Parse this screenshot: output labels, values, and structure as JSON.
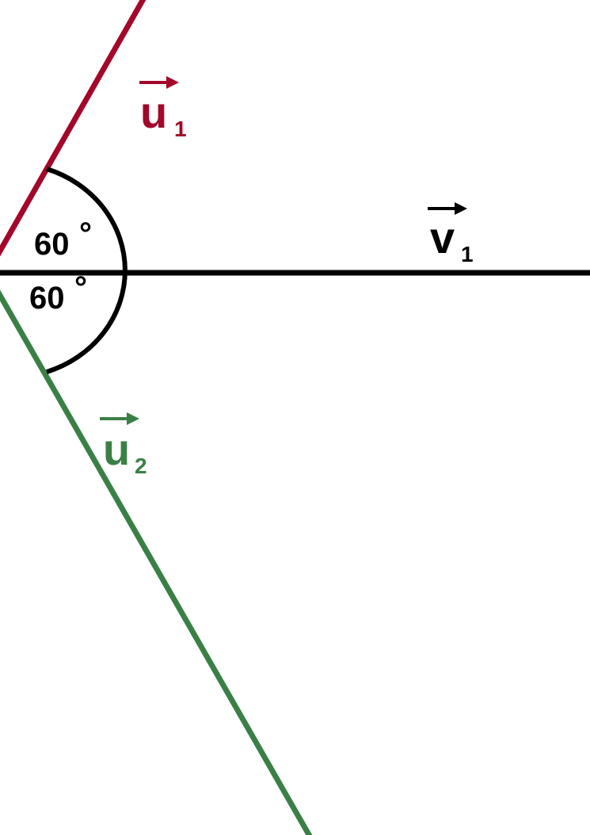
{
  "diagram": {
    "colors": {
      "u1": "#a3072a",
      "u2": "#3a8046",
      "v1": "#000000",
      "arc": "#000000"
    },
    "vectors": {
      "u1": {
        "letter": "u",
        "subscript": "1"
      },
      "u2": {
        "letter": "u",
        "subscript": "2"
      },
      "v1": {
        "letter": "v",
        "subscript": "1"
      }
    },
    "angles": {
      "upper": {
        "value": "60",
        "unit": "°"
      },
      "lower": {
        "value": "60",
        "unit": "°"
      }
    }
  }
}
